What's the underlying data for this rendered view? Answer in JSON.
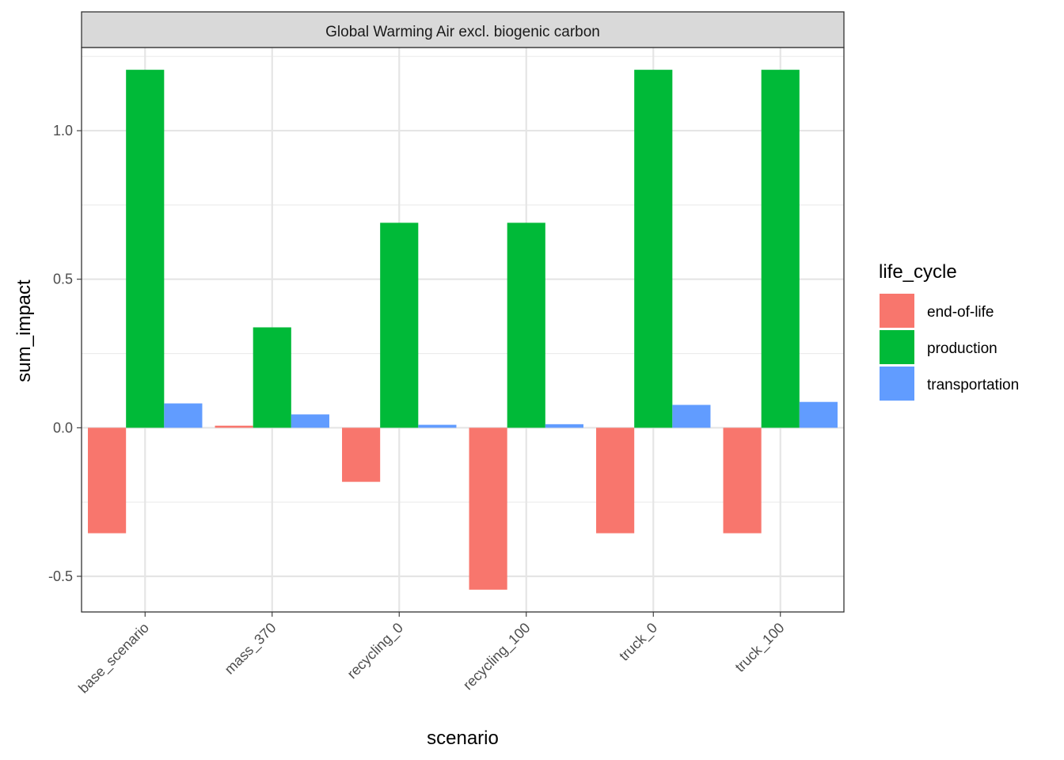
{
  "chart_data": {
    "type": "bar",
    "facet_title": "Global Warming Air excl. biogenic carbon",
    "xlabel": "scenario",
    "ylabel": "sum_impact",
    "categories": [
      "base_scenario",
      "mass_370",
      "recycling_0",
      "recycling_100",
      "truck_0",
      "truck_100"
    ],
    "series": [
      {
        "name": "end-of-life",
        "color": "#F8766D",
        "values": [
          -0.355,
          0.007,
          -0.182,
          -0.545,
          -0.355,
          -0.355
        ]
      },
      {
        "name": "production",
        "color": "#00BA38",
        "values": [
          1.205,
          0.338,
          0.69,
          0.69,
          1.205,
          1.205
        ]
      },
      {
        "name": "transportation",
        "color": "#619CFF",
        "values": [
          0.082,
          0.045,
          0.01,
          0.012,
          0.077,
          0.087
        ]
      }
    ],
    "legend_title": "life_cycle",
    "legend_position": "right",
    "ylim": [
      -0.62,
      1.28
    ],
    "yticks": [
      -0.5,
      0.0,
      0.5,
      1.0
    ],
    "ytick_labels": [
      "-0.5",
      "0.0",
      "0.5",
      "1.0"
    ],
    "grid": true,
    "theme": "bw"
  }
}
